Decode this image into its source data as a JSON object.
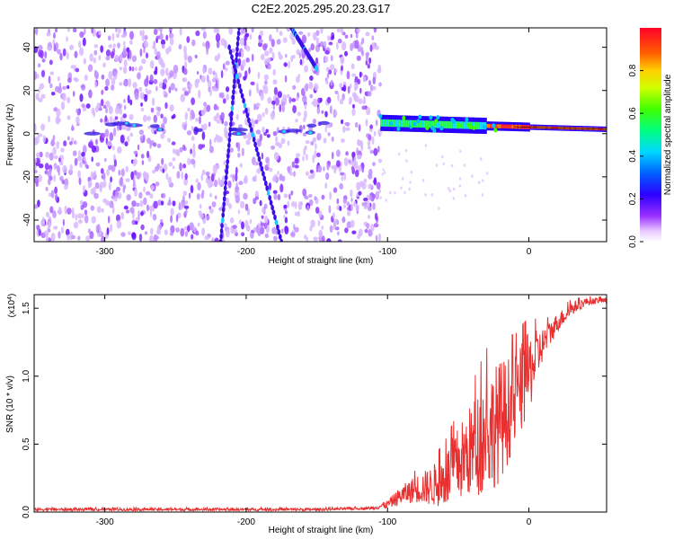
{
  "title": "C2E2.2025.295.20.23.G17",
  "chart_data": [
    {
      "type": "heatmap",
      "title": "C2E2.2025.295.20.23.G17",
      "xlabel": "Height of straight line (km)",
      "ylabel": "Frequency (Hz)",
      "xlim": [
        -350,
        55
      ],
      "ylim": [
        -50,
        49
      ],
      "xticks": [
        -300,
        -200,
        -100,
        0
      ],
      "yticks": [
        -40,
        -20,
        0,
        20,
        40
      ],
      "colorbar": {
        "label": "Normalized spectral amplitude",
        "range": [
          0.0,
          1.0
        ],
        "ticks": [
          0.0,
          0.2,
          0.4,
          0.6,
          0.8
        ],
        "colormap": "rainbow (white-violet-blue-cyan-green-yellow-red)"
      },
      "features": [
        {
          "name": "noise region",
          "x_range": [
            -350,
            -105
          ],
          "amplitude": "low (0.0-0.2)"
        },
        {
          "name": "tone band",
          "x_range": [
            -105,
            55
          ],
          "freq_start": 5,
          "freq_end": 2,
          "amplitude": "high (0.5-1.0)"
        },
        {
          "name": "diagonal streak",
          "points": [
            [
              -218,
              -50
            ],
            [
              -205,
              49
            ]
          ]
        },
        {
          "name": "diagonal streak",
          "points": [
            [
              -212,
              40
            ],
            [
              -175,
              -50
            ]
          ]
        },
        {
          "name": "diagonal streak",
          "points": [
            [
              -168,
              49
            ],
            [
              -150,
              30
            ]
          ]
        }
      ]
    },
    {
      "type": "line",
      "xlabel": "Height of straight line (km)",
      "ylabel": "SNR (10 * v/v)",
      "y_multiplier": "(x10^4)",
      "xlim": [
        -350,
        55
      ],
      "ylim": [
        0,
        1.6
      ],
      "xticks": [
        -300,
        -200,
        -100,
        0
      ],
      "yticks": [
        0.0,
        0.5,
        1.0,
        1.5
      ],
      "ytick_labels": [
        "0.0",
        "0.5",
        "1.0",
        "1.5"
      ],
      "color": "#e83030",
      "series": [
        {
          "x": [
            -350,
            -300,
            -250,
            -200,
            -150,
            -110,
            -100,
            -90,
            -80,
            -70,
            -60,
            -50,
            -40,
            -30,
            -20,
            -10,
            0,
            10,
            20,
            30,
            40,
            50,
            55
          ],
          "y": [
            0.02,
            0.02,
            0.02,
            0.02,
            0.02,
            0.03,
            0.06,
            0.13,
            0.18,
            0.2,
            0.25,
            0.38,
            0.5,
            0.62,
            0.72,
            0.85,
            1.05,
            1.25,
            1.4,
            1.5,
            1.55,
            1.56,
            1.56
          ],
          "noise_amplitude": [
            0.01,
            0.01,
            0.01,
            0.01,
            0.01,
            0.01,
            0.03,
            0.07,
            0.1,
            0.14,
            0.2,
            0.28,
            0.35,
            0.45,
            0.45,
            0.35,
            0.3,
            0.12,
            0.07,
            0.05,
            0.03,
            0.02,
            0.02
          ]
        }
      ]
    }
  ]
}
